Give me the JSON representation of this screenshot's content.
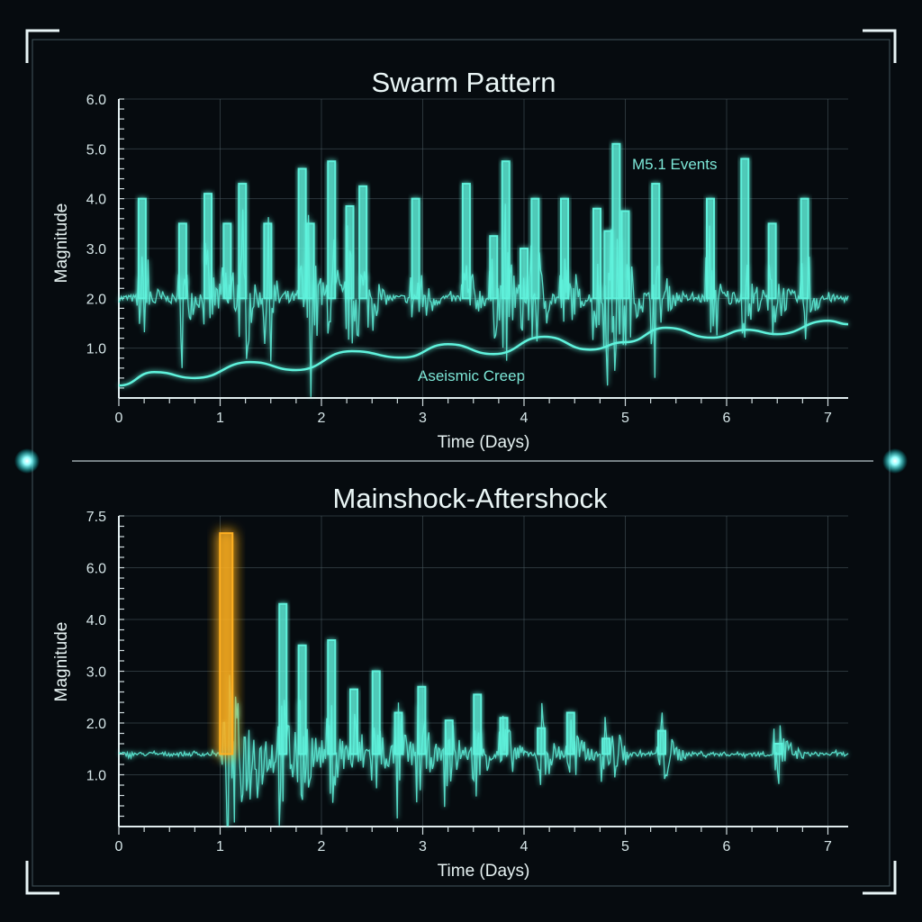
{
  "colors": {
    "background": "#060b0f",
    "accent": "#5ff2dc",
    "mainshock": "#ffb020",
    "frame": "#e8f4f6"
  },
  "chart_data": [
    {
      "type": "line",
      "title": "Swarm Pattern",
      "xlabel": "Time (Days)",
      "ylabel": "Magnitude",
      "xlim": [
        0,
        7.2
      ],
      "ylim": [
        0,
        6.0
      ],
      "xticks": [
        "0",
        "1",
        "2",
        "3",
        "4",
        "5",
        "6",
        "7"
      ],
      "yticks": [
        "1.0",
        "2.0",
        "3.0",
        "4.0",
        "5.0",
        "6.0"
      ],
      "grid": true,
      "baseline": 2.0,
      "series": [
        {
          "kind": "events",
          "x": [
            0.23,
            0.63,
            0.88,
            1.07,
            1.22,
            1.47,
            1.81,
            1.89,
            2.1,
            2.28,
            2.41,
            2.93,
            3.43,
            3.7,
            3.82,
            4.0,
            4.11,
            4.4,
            4.72,
            4.83,
            4.91,
            5.0,
            5.3,
            5.84,
            6.18,
            6.45,
            6.77
          ],
          "y": [
            4.0,
            3.5,
            4.1,
            3.5,
            4.3,
            3.5,
            4.6,
            3.5,
            4.75,
            3.85,
            4.25,
            4.0,
            4.3,
            3.25,
            4.75,
            3.0,
            4.0,
            4.0,
            3.8,
            3.35,
            5.1,
            3.75,
            4.3,
            4.0,
            4.8,
            3.5,
            4.0
          ]
        },
        {
          "name": "Aseismic Creep",
          "kind": "curve",
          "x": [
            0,
            0.35,
            0.75,
            1.3,
            1.75,
            2.3,
            2.8,
            3.25,
            3.7,
            4.2,
            4.65,
            5.0,
            5.4,
            5.85,
            6.2,
            6.5,
            7.0,
            7.2
          ],
          "y": [
            0.25,
            0.52,
            0.4,
            0.72,
            0.56,
            0.94,
            0.81,
            1.08,
            0.88,
            1.23,
            0.97,
            1.12,
            1.41,
            1.21,
            1.37,
            1.28,
            1.55,
            1.48
          ]
        }
      ],
      "annotations": [
        {
          "text": "M5.1 Events",
          "x": 5.07,
          "y": 4.6
        },
        {
          "text": "Aseismic Creep",
          "x": 2.95,
          "y": 0.45
        }
      ]
    },
    {
      "type": "line",
      "title": "Mainshock-Aftershock",
      "xlabel": "Time (Days)",
      "ylabel": "Magnitude",
      "xlim": [
        0,
        7.2
      ],
      "xticks": [
        "0",
        "1",
        "2",
        "3",
        "4",
        "5",
        "6",
        "7"
      ],
      "yticks": [
        "1.0",
        "2.0",
        "3.0",
        "4.0",
        "6.0",
        "7.5"
      ],
      "grid": true,
      "baseline": 1.4,
      "series": [
        {
          "name": "Mainshock",
          "kind": "events",
          "x": [
            1.06
          ],
          "y": [
            7.0
          ]
        },
        {
          "kind": "events",
          "x": [
            1.62,
            1.81,
            2.1,
            2.32,
            2.54,
            2.76,
            2.99,
            3.26,
            3.54,
            3.8,
            4.17,
            4.46,
            4.81,
            5.36,
            6.51
          ],
          "y": [
            4.6,
            3.5,
            3.6,
            2.65,
            3.0,
            2.2,
            2.7,
            2.05,
            2.55,
            2.1,
            1.9,
            2.2,
            1.7,
            1.85,
            1.6
          ]
        }
      ]
    }
  ]
}
